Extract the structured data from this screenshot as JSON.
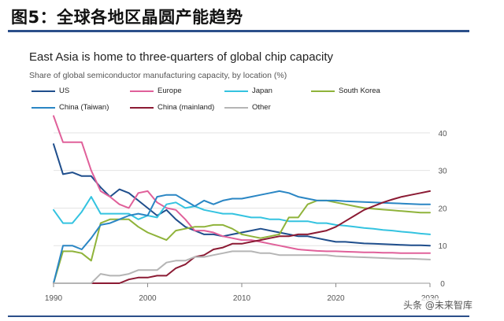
{
  "figure_title": "图5：全球各地区晶圆产能趋势",
  "watermark": "头条 @未来智库",
  "chart_data": {
    "type": "line",
    "title": "East Asia is home to three-quarters of global chip capacity",
    "subtitle": "Share of global semiconductor manufacturing capacity, by location (%)",
    "xlim": [
      1990,
      2030
    ],
    "ylim": [
      0,
      45
    ],
    "x_ticks": [
      1990,
      2000,
      2010,
      2020,
      2030
    ],
    "y_ticks": [
      0,
      10,
      20,
      30,
      40
    ],
    "grid": "horizontal",
    "legend_position": "top",
    "x": [
      1990,
      1991,
      1992,
      1993,
      1994,
      1995,
      1996,
      1997,
      1998,
      1999,
      2000,
      2001,
      2002,
      2003,
      2004,
      2005,
      2006,
      2007,
      2008,
      2009,
      2010,
      2011,
      2012,
      2013,
      2014,
      2015,
      2016,
      2017,
      2018,
      2019,
      2020,
      2021,
      2022,
      2023,
      2024,
      2025,
      2026,
      2027,
      2028,
      2029,
      2030
    ],
    "series": [
      {
        "name": "US",
        "color": "#1f4e8c",
        "values": [
          37,
          29,
          29.5,
          28.5,
          28.5,
          25.5,
          23,
          25,
          24,
          22,
          20,
          18,
          19.5,
          17,
          15,
          14,
          13,
          13,
          12.5,
          13,
          13.5,
          14,
          14.5,
          14,
          13.5,
          13,
          12.5,
          12.5,
          12,
          11.5,
          11,
          11,
          10.8,
          10.6,
          10.5,
          10.4,
          10.3,
          10.2,
          10.1,
          10.1,
          10
        ]
      },
      {
        "name": "Europe",
        "color": "#e0609a",
        "values": [
          44.5,
          37.5,
          37.5,
          37.5,
          30,
          24.5,
          23,
          21,
          20,
          24,
          24.5,
          21.5,
          20,
          19.5,
          17,
          14,
          14,
          13.5,
          12.5,
          12,
          11.5,
          11.5,
          11,
          10.5,
          10,
          9.5,
          9,
          8.8,
          8.6,
          8.5,
          8.5,
          8.4,
          8.3,
          8.2,
          8.2,
          8.1,
          8.1,
          8,
          8,
          8,
          8
        ]
      },
      {
        "name": "Japan",
        "color": "#34c3e0",
        "values": [
          19.5,
          16,
          16,
          19,
          23,
          18.5,
          18.5,
          18.5,
          18.5,
          17,
          18,
          17.5,
          21,
          21.5,
          20,
          20.5,
          19.5,
          19,
          18.5,
          18.5,
          18,
          17.5,
          17.5,
          17,
          17,
          16.5,
          16.5,
          16.5,
          16,
          16,
          15.5,
          15.3,
          15,
          14.7,
          14.5,
          14.2,
          14,
          13.7,
          13.5,
          13.2,
          13
        ]
      },
      {
        "name": "South Korea",
        "color": "#8fb33a",
        "values": [
          0,
          8.5,
          8.5,
          8,
          6,
          16,
          17,
          17,
          17,
          15,
          13.5,
          12.5,
          11.5,
          14,
          14.5,
          15,
          15,
          15.5,
          15.5,
          14.5,
          13,
          12.5,
          12,
          12.5,
          13,
          17.5,
          17.5,
          21,
          22,
          22,
          21.5,
          21,
          20.5,
          20,
          19.8,
          19.6,
          19.4,
          19.2,
          19,
          18.8,
          18.8
        ]
      },
      {
        "name": "China (Taiwan)",
        "color": "#2a86c4",
        "values": [
          0,
          10,
          10,
          9,
          12,
          15.5,
          16,
          17,
          18,
          18.5,
          18,
          23,
          23.5,
          23.5,
          22,
          20.5,
          22,
          21,
          22,
          22.5,
          22.5,
          23,
          23.5,
          24,
          24.5,
          24,
          23,
          22.5,
          22,
          22,
          22,
          21.8,
          21.7,
          21.6,
          21.5,
          21.4,
          21.3,
          21.2,
          21.1,
          21,
          21
        ]
      },
      {
        "name": "China (mainland)",
        "color": "#8b1a33",
        "values": [
          0,
          0,
          0,
          0,
          0,
          0,
          0,
          0,
          1,
          1.5,
          1.5,
          2,
          2,
          4,
          5,
          7,
          7.5,
          9,
          9.5,
          10.5,
          10.5,
          11,
          11.5,
          12,
          12.5,
          12.5,
          13,
          13,
          13.5,
          14,
          15,
          16.5,
          18,
          19.5,
          20.5,
          21.5,
          22.3,
          23,
          23.5,
          24,
          24.5
        ]
      },
      {
        "name": "Other",
        "color": "#b5b5b5",
        "values": [
          0,
          0,
          0,
          0,
          0,
          2.5,
          2,
          2,
          2.5,
          3.5,
          3.5,
          3.5,
          5.5,
          6,
          6,
          7,
          7,
          7.5,
          8,
          8.5,
          8.5,
          8.5,
          8,
          8,
          7.5,
          7.5,
          7.5,
          7.5,
          7.5,
          7.5,
          7.2,
          7.1,
          7,
          6.9,
          6.8,
          6.7,
          6.6,
          6.5,
          6.5,
          6.4,
          6.3
        ]
      }
    ]
  }
}
